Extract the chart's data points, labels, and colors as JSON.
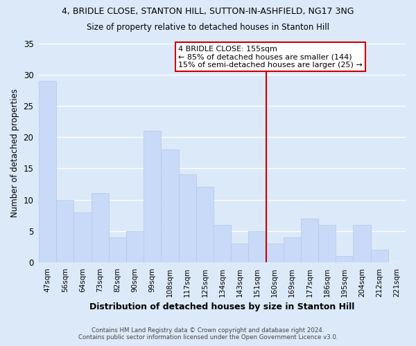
{
  "title": "4, BRIDLE CLOSE, STANTON HILL, SUTTON-IN-ASHFIELD, NG17 3NG",
  "subtitle": "Size of property relative to detached houses in Stanton Hill",
  "xlabel": "Distribution of detached houses by size in Stanton Hill",
  "ylabel": "Number of detached properties",
  "bin_labels": [
    "47sqm",
    "56sqm",
    "64sqm",
    "73sqm",
    "82sqm",
    "90sqm",
    "99sqm",
    "108sqm",
    "117sqm",
    "125sqm",
    "134sqm",
    "143sqm",
    "151sqm",
    "160sqm",
    "169sqm",
    "177sqm",
    "186sqm",
    "195sqm",
    "204sqm",
    "212sqm",
    "221sqm"
  ],
  "bar_values": [
    29,
    10,
    8,
    11,
    4,
    5,
    21,
    18,
    14,
    12,
    6,
    3,
    5,
    3,
    4,
    7,
    6,
    1,
    6,
    2,
    0
  ],
  "bar_color": "#c9daf8",
  "bar_edge_color": "#b0c8e8",
  "grid_color": "#ffffff",
  "bg_color": "#dce9f8",
  "vline_x": 12.5,
  "vline_color": "#cc0000",
  "annotation_title": "4 BRIDLE CLOSE: 155sqm",
  "annotation_line1": "← 85% of detached houses are smaller (144)",
  "annotation_line2": "15% of semi-detached houses are larger (25) →",
  "annotation_box_color": "#ffffff",
  "annotation_box_edge": "#cc0000",
  "footer_line1": "Contains HM Land Registry data © Crown copyright and database right 2024.",
  "footer_line2": "Contains public sector information licensed under the Open Government Licence v3.0.",
  "ylim": [
    0,
    35
  ],
  "yticks": [
    0,
    5,
    10,
    15,
    20,
    25,
    30,
    35
  ]
}
